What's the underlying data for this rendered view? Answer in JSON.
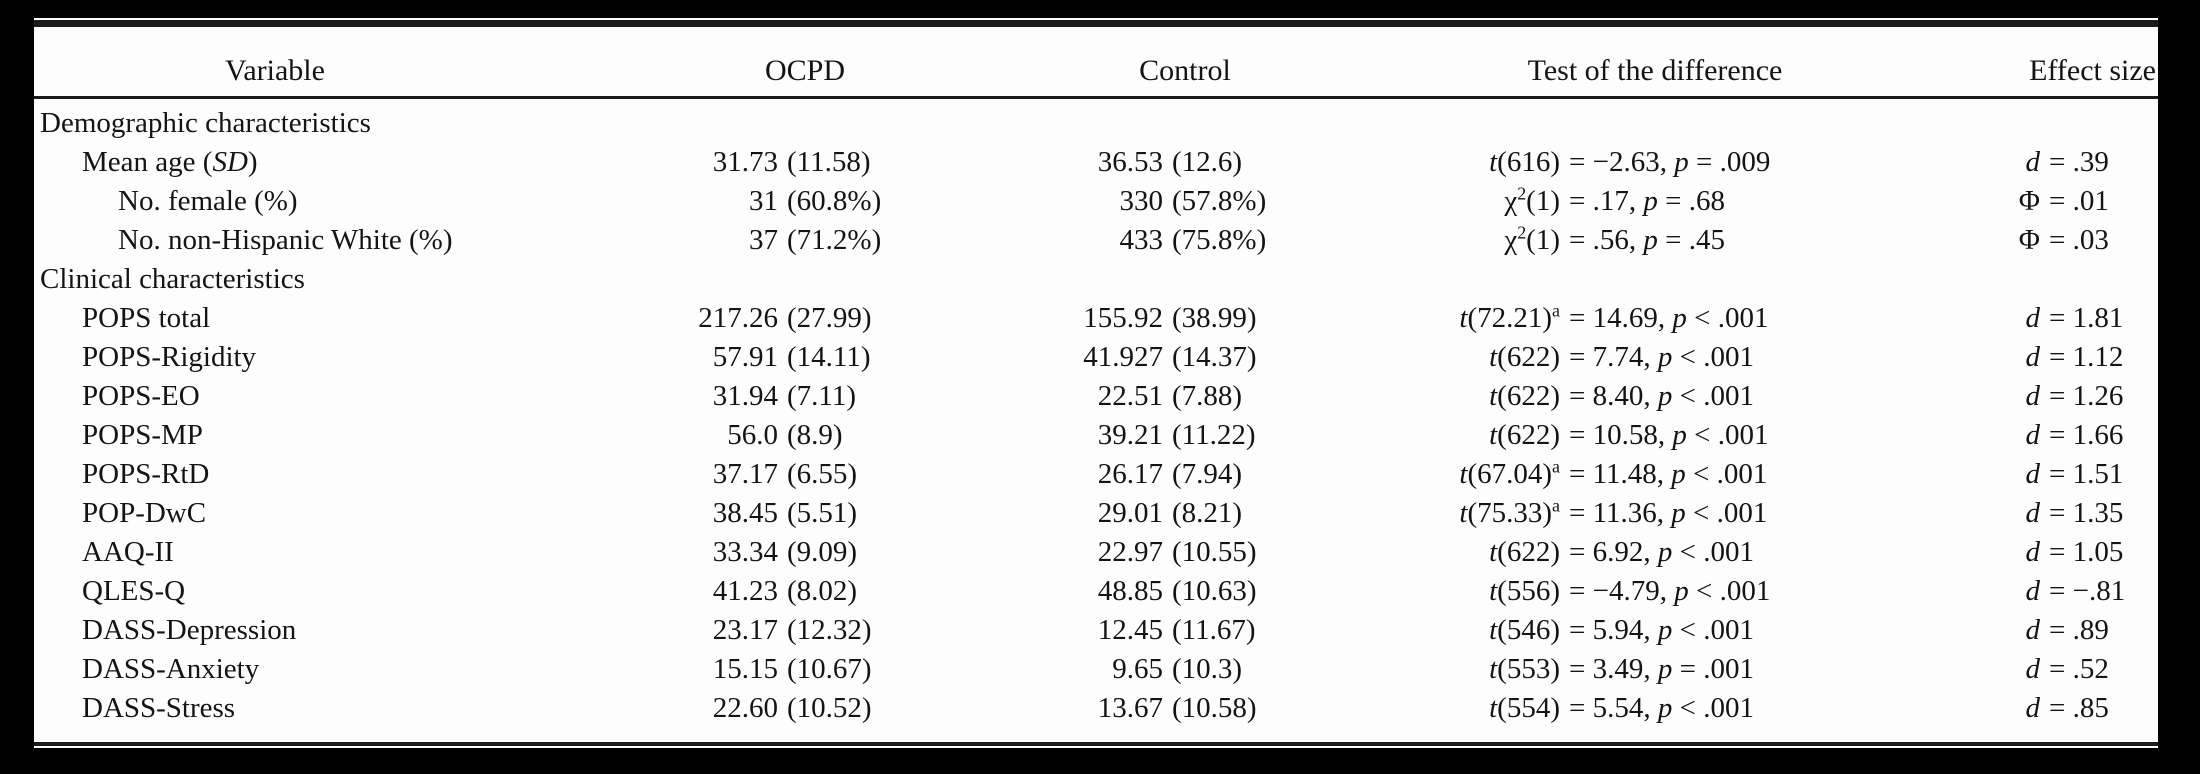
{
  "colors": {
    "page_background": "#000000",
    "card_background": "#fdfdfd",
    "text": "#141414",
    "rule": "#1b1b1b"
  },
  "table": {
    "columns": [
      "Variable",
      "OCPD",
      "Control",
      "Test of the difference",
      "Effect size"
    ],
    "rows": [
      {
        "type": "section",
        "label": "Demographic characteristics"
      },
      {
        "type": "data",
        "indent": 1,
        "variable": [
          {
            "t": "Mean age ("
          },
          {
            "t": "SD",
            "s": "i"
          },
          {
            "t": ")"
          }
        ],
        "ocpd": {
          "value": "31.73",
          "paren": "(11.58)"
        },
        "control": {
          "value": "36.53",
          "paren": "(12.6)"
        },
        "test": {
          "lhs": [
            {
              "t": "t",
              "s": "i"
            },
            {
              "t": "(616)"
            }
          ],
          "rhs": [
            {
              "t": "= −2.63, "
            },
            {
              "t": "p",
              "s": "i"
            },
            {
              "t": " = .009"
            }
          ]
        },
        "effect": {
          "lhs": [
            {
              "t": "d",
              "s": "i"
            }
          ],
          "rhs": [
            {
              "t": "= .39"
            }
          ]
        }
      },
      {
        "type": "data",
        "indent": 2,
        "variable": [
          {
            "t": "No. female (%)"
          }
        ],
        "ocpd": {
          "value": "31",
          "paren": "(60.8%)"
        },
        "control": {
          "value": "330",
          "paren": "(57.8%)"
        },
        "test": {
          "lhs": [
            {
              "t": "χ"
            },
            {
              "t": "2",
              "s": "sup"
            },
            {
              "t": "(1)"
            }
          ],
          "rhs": [
            {
              "t": "= .17, "
            },
            {
              "t": "p",
              "s": "i"
            },
            {
              "t": " = .68"
            }
          ]
        },
        "effect": {
          "lhs": [
            {
              "t": "Φ"
            }
          ],
          "rhs": [
            {
              "t": "= .01"
            }
          ]
        }
      },
      {
        "type": "data",
        "indent": 2,
        "variable": [
          {
            "t": "No. non-Hispanic White (%)"
          }
        ],
        "ocpd": {
          "value": "37",
          "paren": "(71.2%)"
        },
        "control": {
          "value": "433",
          "paren": "(75.8%)"
        },
        "test": {
          "lhs": [
            {
              "t": "χ"
            },
            {
              "t": "2",
              "s": "sup"
            },
            {
              "t": "(1)"
            }
          ],
          "rhs": [
            {
              "t": "= .56, "
            },
            {
              "t": "p",
              "s": "i"
            },
            {
              "t": " = .45"
            }
          ]
        },
        "effect": {
          "lhs": [
            {
              "t": "Φ"
            }
          ],
          "rhs": [
            {
              "t": "= .03"
            }
          ]
        }
      },
      {
        "type": "section",
        "label": "Clinical characteristics"
      },
      {
        "type": "data",
        "indent": 1,
        "variable": [
          {
            "t": "POPS total"
          }
        ],
        "ocpd": {
          "value": "217.26",
          "paren": "(27.99)"
        },
        "control": {
          "value": "155.92",
          "paren": "(38.99)"
        },
        "test": {
          "lhs": [
            {
              "t": "t",
              "s": "i"
            },
            {
              "t": "(72.21)"
            },
            {
              "t": "a",
              "s": "sup"
            }
          ],
          "rhs": [
            {
              "t": "= 14.69, "
            },
            {
              "t": "p",
              "s": "i"
            },
            {
              "t": " < .001"
            }
          ]
        },
        "effect": {
          "lhs": [
            {
              "t": "d",
              "s": "i"
            }
          ],
          "rhs": [
            {
              "t": "= 1.81"
            }
          ]
        }
      },
      {
        "type": "data",
        "indent": 1,
        "variable": [
          {
            "t": "POPS-Rigidity"
          }
        ],
        "ocpd": {
          "value": "57.91",
          "paren": "(14.11)"
        },
        "control": {
          "value": "41.927",
          "paren": "(14.37)"
        },
        "test": {
          "lhs": [
            {
              "t": "t",
              "s": "i"
            },
            {
              "t": "(622)"
            }
          ],
          "rhs": [
            {
              "t": "= 7.74, "
            },
            {
              "t": "p",
              "s": "i"
            },
            {
              "t": " < .001"
            }
          ]
        },
        "effect": {
          "lhs": [
            {
              "t": "d",
              "s": "i"
            }
          ],
          "rhs": [
            {
              "t": "= 1.12"
            }
          ]
        }
      },
      {
        "type": "data",
        "indent": 1,
        "variable": [
          {
            "t": "POPS-EO"
          }
        ],
        "ocpd": {
          "value": "31.94",
          "paren": "(7.11)"
        },
        "control": {
          "value": "22.51",
          "paren": "(7.88)"
        },
        "test": {
          "lhs": [
            {
              "t": "t",
              "s": "i"
            },
            {
              "t": "(622)"
            }
          ],
          "rhs": [
            {
              "t": "= 8.40, "
            },
            {
              "t": "p",
              "s": "i"
            },
            {
              "t": " < .001"
            }
          ]
        },
        "effect": {
          "lhs": [
            {
              "t": "d",
              "s": "i"
            }
          ],
          "rhs": [
            {
              "t": "= 1.26"
            }
          ]
        }
      },
      {
        "type": "data",
        "indent": 1,
        "variable": [
          {
            "t": "POPS-MP"
          }
        ],
        "ocpd": {
          "value": "56.0",
          "paren": "(8.9)"
        },
        "control": {
          "value": "39.21",
          "paren": "(11.22)"
        },
        "test": {
          "lhs": [
            {
              "t": "t",
              "s": "i"
            },
            {
              "t": "(622)"
            }
          ],
          "rhs": [
            {
              "t": "= 10.58, "
            },
            {
              "t": "p",
              "s": "i"
            },
            {
              "t": " < .001"
            }
          ]
        },
        "effect": {
          "lhs": [
            {
              "t": "d",
              "s": "i"
            }
          ],
          "rhs": [
            {
              "t": "= 1.66"
            }
          ]
        }
      },
      {
        "type": "data",
        "indent": 1,
        "variable": [
          {
            "t": "POPS-RtD"
          }
        ],
        "ocpd": {
          "value": "37.17",
          "paren": "(6.55)"
        },
        "control": {
          "value": "26.17",
          "paren": "(7.94)"
        },
        "test": {
          "lhs": [
            {
              "t": "t",
              "s": "i"
            },
            {
              "t": "(67.04)"
            },
            {
              "t": "a",
              "s": "sup"
            }
          ],
          "rhs": [
            {
              "t": "= 11.48, "
            },
            {
              "t": "p",
              "s": "i"
            },
            {
              "t": " < .001"
            }
          ]
        },
        "effect": {
          "lhs": [
            {
              "t": "d",
              "s": "i"
            }
          ],
          "rhs": [
            {
              "t": "= 1.51"
            }
          ]
        }
      },
      {
        "type": "data",
        "indent": 1,
        "variable": [
          {
            "t": "POP-DwC"
          }
        ],
        "ocpd": {
          "value": "38.45",
          "paren": "(5.51)"
        },
        "control": {
          "value": "29.01",
          "paren": "(8.21)"
        },
        "test": {
          "lhs": [
            {
              "t": "t",
              "s": "i"
            },
            {
              "t": "(75.33)"
            },
            {
              "t": "a",
              "s": "sup"
            }
          ],
          "rhs": [
            {
              "t": "= 11.36, "
            },
            {
              "t": "p",
              "s": "i"
            },
            {
              "t": " < .001"
            }
          ]
        },
        "effect": {
          "lhs": [
            {
              "t": "d",
              "s": "i"
            }
          ],
          "rhs": [
            {
              "t": "= 1.35"
            }
          ]
        }
      },
      {
        "type": "data",
        "indent": 1,
        "variable": [
          {
            "t": "AAQ-II"
          }
        ],
        "ocpd": {
          "value": "33.34",
          "paren": "(9.09)"
        },
        "control": {
          "value": "22.97",
          "paren": "(10.55)"
        },
        "test": {
          "lhs": [
            {
              "t": "t",
              "s": "i"
            },
            {
              "t": "(622)"
            }
          ],
          "rhs": [
            {
              "t": "= 6.92, "
            },
            {
              "t": "p",
              "s": "i"
            },
            {
              "t": " < .001"
            }
          ]
        },
        "effect": {
          "lhs": [
            {
              "t": "d",
              "s": "i"
            }
          ],
          "rhs": [
            {
              "t": "= 1.05"
            }
          ]
        }
      },
      {
        "type": "data",
        "indent": 1,
        "variable": [
          {
            "t": "QLES-Q"
          }
        ],
        "ocpd": {
          "value": "41.23",
          "paren": "(8.02)"
        },
        "control": {
          "value": "48.85",
          "paren": "(10.63)"
        },
        "test": {
          "lhs": [
            {
              "t": "t",
              "s": "i"
            },
            {
              "t": "(556)"
            }
          ],
          "rhs": [
            {
              "t": "= −4.79, "
            },
            {
              "t": "p",
              "s": "i"
            },
            {
              "t": " < .001"
            }
          ]
        },
        "effect": {
          "lhs": [
            {
              "t": "d",
              "s": "i"
            }
          ],
          "rhs": [
            {
              "t": "= −.81"
            }
          ]
        }
      },
      {
        "type": "data",
        "indent": 1,
        "variable": [
          {
            "t": "DASS-Depression"
          }
        ],
        "ocpd": {
          "value": "23.17",
          "paren": "(12.32)"
        },
        "control": {
          "value": "12.45",
          "paren": "(11.67)"
        },
        "test": {
          "lhs": [
            {
              "t": "t",
              "s": "i"
            },
            {
              "t": "(546)"
            }
          ],
          "rhs": [
            {
              "t": "= 5.94, "
            },
            {
              "t": "p",
              "s": "i"
            },
            {
              "t": " < .001"
            }
          ]
        },
        "effect": {
          "lhs": [
            {
              "t": "d",
              "s": "i"
            }
          ],
          "rhs": [
            {
              "t": "= .89"
            }
          ]
        }
      },
      {
        "type": "data",
        "indent": 1,
        "variable": [
          {
            "t": "DASS-Anxiety"
          }
        ],
        "ocpd": {
          "value": "15.15",
          "paren": "(10.67)"
        },
        "control": {
          "value": "9.65",
          "paren": "(10.3)"
        },
        "test": {
          "lhs": [
            {
              "t": "t",
              "s": "i"
            },
            {
              "t": "(553)"
            }
          ],
          "rhs": [
            {
              "t": "= 3.49, "
            },
            {
              "t": "p",
              "s": "i"
            },
            {
              "t": " = .001"
            }
          ]
        },
        "effect": {
          "lhs": [
            {
              "t": "d",
              "s": "i"
            }
          ],
          "rhs": [
            {
              "t": "= .52"
            }
          ]
        }
      },
      {
        "type": "data",
        "indent": 1,
        "variable": [
          {
            "t": "DASS-Stress"
          }
        ],
        "ocpd": {
          "value": "22.60",
          "paren": "(10.52)"
        },
        "control": {
          "value": "13.67",
          "paren": "(10.58)"
        },
        "test": {
          "lhs": [
            {
              "t": "t",
              "s": "i"
            },
            {
              "t": "(554)"
            }
          ],
          "rhs": [
            {
              "t": "= 5.54, "
            },
            {
              "t": "p",
              "s": "i"
            },
            {
              "t": " < .001"
            }
          ]
        },
        "effect": {
          "lhs": [
            {
              "t": "d",
              "s": "i"
            }
          ],
          "rhs": [
            {
              "t": "= .85"
            }
          ]
        }
      }
    ]
  }
}
